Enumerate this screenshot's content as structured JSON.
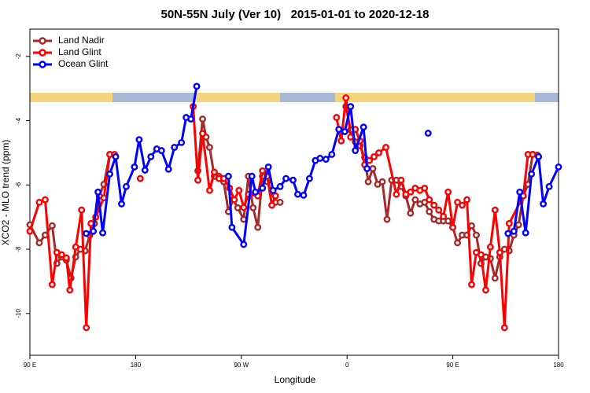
{
  "chart_data": {
    "type": "line",
    "title": "50N-55N July (Ver 10)   2015-01-01 to 2020-12-18",
    "x_label": "Longitude",
    "y_label": "XCO2 - MLO trend (ppm)",
    "xlim": [
      90,
      540
    ],
    "ylim": [
      -11.3,
      -1.15
    ],
    "xticks": [
      {
        "value": 90,
        "label": "90 E"
      },
      {
        "value": 180,
        "label": "180"
      },
      {
        "value": 270,
        "label": "90 W"
      },
      {
        "value": 360,
        "label": "0"
      },
      {
        "value": 450,
        "label": "90 E"
      },
      {
        "value": 540,
        "label": "180"
      }
    ],
    "yticks": [
      -2,
      -4,
      -6,
      -8,
      -10
    ],
    "legend": "upper left",
    "series": [
      {
        "name": "Land Nadir",
        "color": "#a52a2a",
        "x": [
          90,
          98,
          103,
          109,
          113,
          117,
          121,
          125,
          129,
          133,
          137,
          141,
          145,
          149,
          153,
          158,
          162,
          null,
          233,
          237,
          240,
          243,
          247,
          251,
          255,
          259,
          263,
          267,
          272,
          276,
          280,
          284,
          288,
          292,
          296,
          299,
          303,
          null,
          359,
          363,
          367,
          371,
          375,
          378,
          382,
          386,
          390,
          394,
          398,
          402,
          406,
          410,
          414,
          418,
          422,
          426,
          430,
          434,
          438,
          442,
          446,
          450,
          454,
          458,
          462,
          466,
          470,
          474,
          478,
          482,
          486,
          490,
          494,
          498,
          502,
          506,
          510,
          514,
          518,
          522
        ],
        "values": [
          -7.24,
          -7.8,
          -7.56,
          -7.27,
          -8.44,
          -8.24,
          -8.34,
          -8.9,
          -8.24,
          -8.0,
          -8.05,
          -7.56,
          -7.2,
          -6.34,
          -5.98,
          -5.05,
          -5.07,
          null,
          -5.56,
          -3.95,
          -4.51,
          -4.83,
          -5.73,
          -5.73,
          -5.9,
          -6.83,
          -6.46,
          -6.71,
          -7.07,
          -5.73,
          -6.71,
          -7.32,
          -5.73,
          -5.9,
          -6.22,
          -6.54,
          -6.54,
          null,
          -3.56,
          -4.29,
          -4.66,
          -4.78,
          -5.15,
          -5.9,
          -5.49,
          -5.98,
          -5.9,
          -7.07,
          -5.85,
          -5.85,
          -6.05,
          -6.34,
          -6.88,
          -6.46,
          -6.59,
          -6.54,
          -6.83,
          -7.07,
          -7.12,
          -7.12,
          -7.12,
          -7.32,
          -7.8,
          -7.56,
          -7.56,
          -7.27,
          -7.56,
          -8.44,
          -8.24,
          -8.29,
          -8.9,
          -8.24,
          -8.0,
          -8.05,
          -7.56,
          -7.24,
          -6.34,
          -5.98,
          -5.05,
          -5.07
        ]
      },
      {
        "name": "Land Glint",
        "color": "#ff0000",
        "x": [
          90,
          98,
          103,
          109,
          113,
          117,
          121,
          124,
          129,
          134,
          138,
          142,
          146,
          153,
          158,
          162,
          null,
          184,
          null,
          229,
          233,
          237,
          243,
          247,
          251,
          255,
          260,
          264,
          268,
          272,
          276,
          284,
          288,
          292,
          296,
          299,
          null,
          351,
          355,
          359,
          363,
          367,
          371,
          375,
          379,
          383,
          387,
          393,
          402,
          406,
          410,
          414,
          418,
          422,
          426,
          430,
          434,
          438,
          442,
          446,
          450,
          454,
          458,
          462,
          466,
          470,
          474,
          478,
          482,
          486,
          490,
          494,
          498,
          510,
          514,
          518
        ],
        "values": [
          -7.44,
          -6.54,
          -6.46,
          -9.1,
          -8.1,
          -8.17,
          -8.27,
          -9.27,
          -7.93,
          -6.78,
          -10.44,
          -7.2,
          -7.0,
          -6.4,
          -5.05,
          -5.05,
          null,
          -5.8,
          null,
          -3.56,
          -5.85,
          -4.4,
          -6.17,
          -5.6,
          -5.8,
          -5.8,
          -6.1,
          -6.46,
          -6.17,
          -6.7,
          -6.29,
          -6.34,
          -5.56,
          -5.73,
          -6.63,
          -6.34,
          null,
          -3.9,
          -4.63,
          -3.29,
          -4.51,
          -4.27,
          -4.63,
          -5.37,
          -5.24,
          -5.12,
          -5.0,
          -4.83,
          -6.29,
          -5.85,
          -6.29,
          -6.22,
          -6.1,
          -6.17,
          -6.1,
          -6.46,
          -6.63,
          -6.78,
          -6.98,
          -6.22,
          -7.32,
          -6.54,
          -6.63,
          -6.46,
          -9.1,
          -8.1,
          -8.17,
          -9.27,
          -7.93,
          -6.78,
          -8.1,
          -10.44,
          -7.2,
          -6.34,
          -5.05,
          -5.05
        ]
      },
      {
        "name": "Ocean Glint",
        "color": "#0000ff",
        "x": [
          138,
          144,
          148,
          152,
          158,
          163,
          168,
          172,
          179,
          183,
          188,
          193,
          198,
          202,
          208,
          213,
          219,
          223,
          227,
          232,
          null,
          259,
          262,
          272,
          279,
          282,
          288,
          293,
          297,
          303,
          308,
          314,
          318,
          323,
          328,
          333,
          337,
          342,
          347,
          353,
          358,
          363,
          367,
          374,
          377,
          null,
          429,
          null,
          497,
          502,
          507,
          512,
          517,
          523,
          527,
          532,
          540
        ],
        "values": [
          -7.51,
          -7.44,
          -6.22,
          -7.49,
          -5.66,
          -5.12,
          -6.59,
          -6.05,
          -5.44,
          -4.59,
          -5.54,
          -5.12,
          -4.88,
          -4.93,
          -5.51,
          -4.83,
          -4.68,
          -3.9,
          -3.95,
          -2.93,
          null,
          -5.73,
          -7.32,
          -7.85,
          -5.73,
          -6.22,
          -6.1,
          -5.44,
          -6.17,
          -6.05,
          -5.8,
          -5.85,
          -6.29,
          -6.32,
          -5.8,
          -5.24,
          -5.17,
          -5.2,
          -5.05,
          -4.27,
          -4.34,
          -3.56,
          -4.93,
          -4.2,
          -5.49,
          null,
          -4.39,
          null,
          -7.51,
          -7.44,
          -6.22,
          -7.49,
          -5.66,
          -5.12,
          -6.59,
          -6.05,
          -5.44
        ]
      }
    ]
  }
}
